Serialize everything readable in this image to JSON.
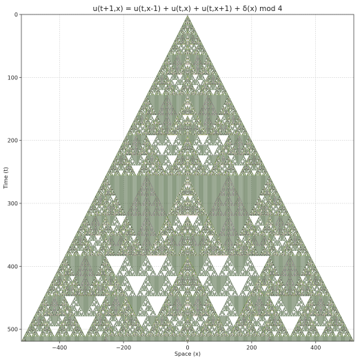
{
  "chart_data": {
    "type": "heatmap",
    "title": "u(t+1,x) = u(t,x-1) + u(t,x) + u(t,x+1) + δ(x) mod 4",
    "xlabel": "Space (x)",
    "ylabel": "Time (t)",
    "rule": {
      "neighbors": [
        -1,
        0,
        1
      ],
      "source_at_origin": 1,
      "modulus": 4,
      "initial_condition": "zeros"
    },
    "x_range": [
      -519,
      519
    ],
    "t_range": [
      0,
      519
    ],
    "xlim": [
      -519,
      519
    ],
    "ylim": [
      519,
      0
    ],
    "x_ticks": [
      -400,
      -200,
      0,
      200,
      400
    ],
    "y_ticks": [
      0,
      100,
      200,
      300,
      400,
      500
    ],
    "grid": true,
    "colors": {
      "0": "#ffffff",
      "1": "#a9cb52",
      "2": "#ad6dbb",
      "3": "#dceaa4"
    },
    "edge_color": "#2b4a1c"
  }
}
